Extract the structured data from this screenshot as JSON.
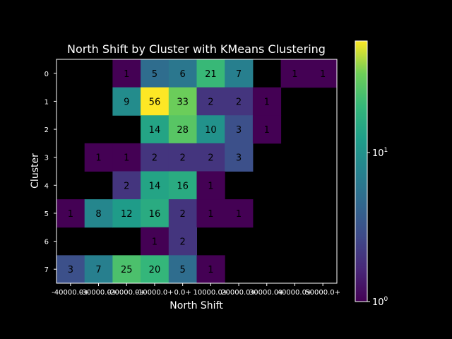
{
  "chart_data": {
    "type": "heatmap",
    "title": "North Shift by Cluster with KMeans Clustering",
    "xlabel": "North Shift",
    "ylabel": "Cluster",
    "x_tick_labels": [
      "-40000.0+",
      "-30000.0+",
      "-20000.0+",
      "-10000.0+",
      "0.0+",
      "10000.0+",
      "20000.0+",
      "30000.0+",
      "40000.0+",
      "50000.0+"
    ],
    "y_tick_labels": [
      "0",
      "1",
      "2",
      "3",
      "4",
      "5",
      "6",
      "7"
    ],
    "values": [
      [
        null,
        null,
        1,
        5,
        6,
        21,
        7,
        null,
        1,
        1
      ],
      [
        null,
        null,
        9,
        56,
        33,
        2,
        2,
        1,
        null,
        null
      ],
      [
        null,
        null,
        null,
        14,
        28,
        10,
        3,
        1,
        null,
        null
      ],
      [
        null,
        1,
        1,
        2,
        2,
        2,
        3,
        null,
        null,
        null
      ],
      [
        null,
        null,
        2,
        14,
        16,
        1,
        null,
        null,
        null,
        null
      ],
      [
        1,
        8,
        12,
        16,
        2,
        1,
        1,
        null,
        null,
        null
      ],
      [
        null,
        null,
        null,
        1,
        2,
        null,
        null,
        null,
        null,
        null
      ],
      [
        3,
        7,
        25,
        20,
        5,
        1,
        null,
        null,
        null,
        null
      ]
    ],
    "color_scale": "log",
    "colormap": "viridis",
    "colorbar": {
      "min": 1,
      "max": 56,
      "tick_labels": [
        "10^0",
        "10^1"
      ],
      "tick_values": [
        1,
        10
      ]
    },
    "background": "#000000",
    "foreground": "#ffffff",
    "grid": false
  }
}
